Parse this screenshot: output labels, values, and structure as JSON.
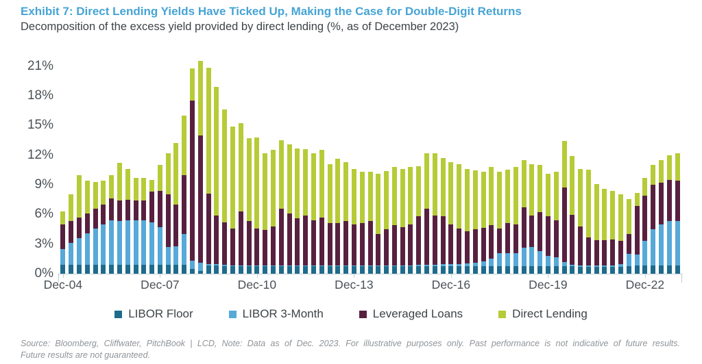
{
  "header": {
    "title": "Exhibit 7: Direct Lending Yields Have Ticked Up, Making the Case for Double-Digit Returns",
    "subtitle": "Decomposition of the excess yield provided by direct lending (%, as of December 2023)"
  },
  "colors": {
    "title_accent": "#46a4d5",
    "libor_floor": "#1e6b8c",
    "libor_3m": "#56a9d9",
    "leveraged_loans": "#58203f",
    "direct_lending": "#b6cb37",
    "axis_line": "#c3cdd4",
    "axis_text": "#4a5156",
    "body_text": "#3d4347",
    "footer_text": "#8f9499"
  },
  "chart_data": {
    "type": "bar",
    "stacked": true,
    "title": "Decomposition of the excess yield provided by direct lending (%, as of December 2023)",
    "xlabel": "",
    "ylabel": "",
    "ylim": [
      0,
      21.6
    ],
    "grid": false,
    "legend_position": "bottom",
    "y_tick_values": [
      0,
      3,
      6,
      9,
      12,
      15,
      18,
      21
    ],
    "y_tick_labels": [
      "0%",
      "3%",
      "6%",
      "9%",
      "12%",
      "15%",
      "18%",
      "21%"
    ],
    "x_tick_indices": [
      0,
      12,
      24,
      36,
      48,
      60,
      72
    ],
    "x_tick_labels": [
      "Dec-04",
      "Dec-07",
      "Dec-10",
      "Dec-13",
      "Dec-16",
      "Dec-19",
      "Dec-22"
    ],
    "categories": [
      "Dec-04",
      "Mar-05",
      "Jun-05",
      "Sep-05",
      "Dec-05",
      "Mar-06",
      "Jun-06",
      "Sep-06",
      "Dec-06",
      "Mar-07",
      "Jun-07",
      "Sep-07",
      "Dec-07",
      "Mar-08",
      "Jun-08",
      "Sep-08",
      "Dec-08",
      "Mar-09",
      "Jun-09",
      "Sep-09",
      "Dec-09",
      "Mar-10",
      "Jun-10",
      "Sep-10",
      "Dec-10",
      "Mar-11",
      "Jun-11",
      "Sep-11",
      "Dec-11",
      "Mar-12",
      "Jun-12",
      "Sep-12",
      "Dec-12",
      "Mar-13",
      "Jun-13",
      "Sep-13",
      "Dec-13",
      "Mar-14",
      "Jun-14",
      "Sep-14",
      "Dec-14",
      "Mar-15",
      "Jun-15",
      "Sep-15",
      "Dec-15",
      "Mar-16",
      "Jun-16",
      "Sep-16",
      "Dec-16",
      "Mar-17",
      "Jun-17",
      "Sep-17",
      "Dec-17",
      "Mar-18",
      "Jun-18",
      "Sep-18",
      "Dec-18",
      "Mar-19",
      "Jun-19",
      "Sep-19",
      "Dec-19",
      "Mar-20",
      "Jun-20",
      "Sep-20",
      "Dec-20",
      "Mar-21",
      "Jun-21",
      "Sep-21",
      "Dec-21",
      "Mar-22",
      "Jun-22",
      "Sep-22",
      "Dec-22",
      "Mar-23",
      "Jun-23",
      "Sep-23",
      "Dec-23"
    ],
    "series": [
      {
        "name": "LIBOR Floor",
        "color_key": "libor_floor",
        "values": [
          0.9,
          0.9,
          0.9,
          0.9,
          0.9,
          0.9,
          0.9,
          0.9,
          0.9,
          0.9,
          0.9,
          0.9,
          0.9,
          0.9,
          0.9,
          0.9,
          0.5,
          0.3,
          0.8,
          0.8,
          0.75,
          0.75,
          0.75,
          0.75,
          0.75,
          0.75,
          0.75,
          0.75,
          0.75,
          0.75,
          0.75,
          0.75,
          0.75,
          0.75,
          0.75,
          0.75,
          0.75,
          0.75,
          0.75,
          0.75,
          0.75,
          0.75,
          0.75,
          0.75,
          0.75,
          0.75,
          0.75,
          0.75,
          0.75,
          0.75,
          0.75,
          0.75,
          0.75,
          0.75,
          0.75,
          0.75,
          0.75,
          0.75,
          0.75,
          0.75,
          0.75,
          0.75,
          0.75,
          0.75,
          0.7,
          0.7,
          0.7,
          0.7,
          0.7,
          0.7,
          0.75,
          0.8,
          0.8,
          0.8,
          0.8,
          0.8,
          0.8
        ]
      },
      {
        "name": "LIBOR 3-Month",
        "color_key": "libor_3m",
        "values": [
          1.6,
          2.2,
          2.7,
          3.2,
          3.7,
          4.1,
          4.5,
          4.4,
          4.5,
          4.5,
          4.5,
          4.3,
          3.8,
          1.8,
          1.9,
          3.1,
          0.8,
          0.8,
          0.2,
          0.15,
          0.15,
          0.1,
          0.1,
          0.1,
          0.1,
          0.1,
          0.1,
          0.1,
          0.1,
          0.1,
          0.1,
          0.1,
          0.1,
          0.1,
          0.1,
          0.1,
          0.1,
          0.1,
          0.1,
          0.1,
          0.1,
          0.1,
          0.1,
          0.1,
          0.15,
          0.15,
          0.15,
          0.2,
          0.2,
          0.25,
          0.3,
          0.35,
          0.5,
          0.75,
          1.3,
          1.3,
          1.35,
          1.85,
          1.95,
          1.55,
          1.05,
          0.9,
          0.4,
          0.15,
          0.1,
          0.1,
          0.1,
          0.1,
          0.1,
          0.3,
          1.25,
          1.15,
          2.5,
          3.7,
          4.2,
          4.5,
          4.5
        ]
      },
      {
        "name": "Leveraged Loans",
        "color_key": "leveraged_loans",
        "values": [
          2.5,
          2.2,
          2.1,
          2.0,
          2.0,
          2.0,
          2.2,
          2.1,
          2.1,
          2.0,
          2.0,
          3.1,
          3.7,
          5.3,
          4.2,
          6.0,
          16.2,
          12.9,
          7.1,
          4.95,
          4.3,
          3.75,
          5.45,
          4.45,
          3.75,
          3.55,
          3.95,
          5.75,
          5.25,
          4.75,
          5.05,
          4.55,
          4.85,
          4.3,
          4.3,
          4.45,
          4.15,
          4.3,
          4.45,
          3.15,
          3.65,
          4.05,
          3.85,
          4.15,
          4.9,
          5.7,
          5.0,
          4.85,
          4.05,
          3.6,
          3.25,
          3.4,
          3.4,
          3.4,
          2.55,
          3.1,
          2.9,
          4.1,
          3.2,
          3.9,
          4.0,
          3.75,
          7.55,
          5.05,
          4.0,
          2.85,
          2.6,
          2.6,
          2.65,
          2.35,
          2.05,
          4.9,
          4.6,
          4.5,
          4.2,
          4.2,
          4.1
        ]
      },
      {
        "name": "Direct Lending",
        "color_key": "direct_lending",
        "values": [
          1.3,
          2.7,
          4.3,
          3.3,
          2.7,
          2.4,
          2.4,
          3.8,
          3.1,
          2.3,
          2.3,
          1.2,
          2.6,
          4.2,
          6.2,
          6.0,
          3.3,
          7.5,
          12.75,
          13.0,
          11.4,
          10.3,
          8.95,
          8.4,
          9.2,
          7.8,
          7.7,
          6.9,
          7.0,
          7.1,
          6.7,
          6.8,
          6.8,
          5.9,
          6.45,
          6.0,
          5.6,
          5.15,
          5.0,
          6.1,
          5.9,
          5.9,
          5.9,
          5.8,
          5.1,
          5.6,
          6.3,
          5.9,
          6.3,
          6.45,
          6.3,
          5.95,
          5.65,
          5.9,
          5.7,
          5.35,
          5.8,
          4.8,
          5.15,
          4.8,
          4.3,
          4.9,
          4.7,
          5.95,
          5.8,
          6.85,
          5.7,
          5.2,
          4.95,
          4.7,
          3.5,
          1.35,
          1.8,
          2.0,
          2.3,
          2.5,
          2.8
        ]
      }
    ]
  },
  "footer": {
    "line1": "Source: Bloomberg, Cliffwater, PitchBook | LCD, Note: Data as of Dec. 2023. For illustrative purposes only. Past performance is not indicative of future results.",
    "line2": "Future results are not guaranteed."
  }
}
